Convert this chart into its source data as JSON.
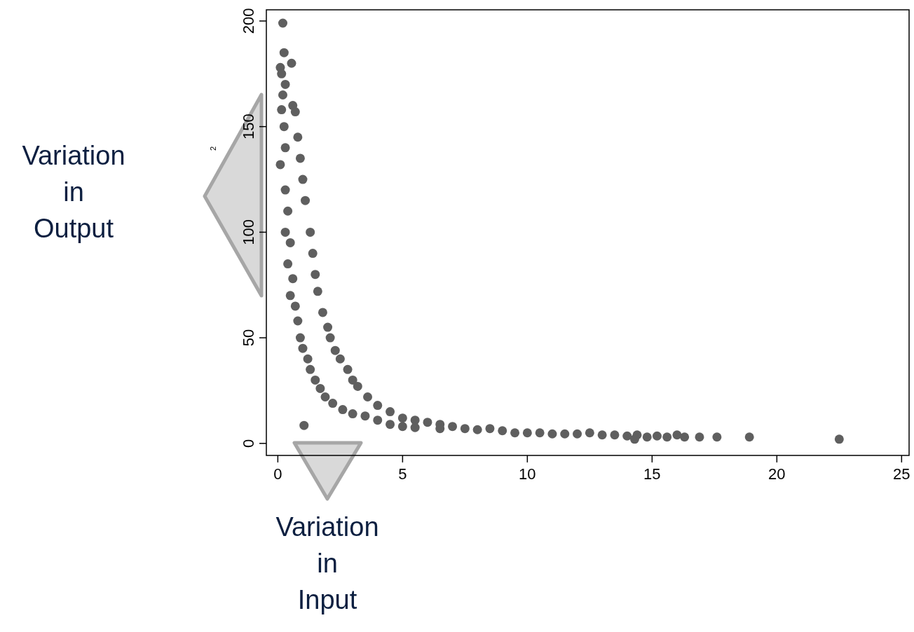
{
  "chart_data": {
    "type": "scatter",
    "ylabel": "2",
    "xlim": [
      -0.46,
      25.3
    ],
    "ylim": [
      -5.7,
      205.3
    ],
    "xticks": [
      0,
      5,
      10,
      15,
      20,
      25
    ],
    "yticks": [
      0,
      50,
      100,
      150,
      200
    ],
    "marker": "circle",
    "color": "#5f5f5f",
    "x": [
      0.2,
      0.25,
      0.55,
      0.1,
      0.15,
      0.3,
      0.2,
      0.6,
      0.7,
      0.15,
      0.25,
      0.8,
      0.1,
      0.9,
      0.3,
      1.0,
      0.3,
      1.1,
      0.4,
      1.3,
      0.3,
      0.5,
      1.4,
      0.4,
      1.5,
      0.6,
      1.6,
      0.5,
      0.7,
      1.8,
      0.8,
      2.0,
      0.9,
      2.1,
      1.0,
      2.3,
      1.2,
      2.5,
      1.3,
      2.8,
      1.5,
      3.0,
      1.7,
      3.2,
      1.9,
      3.6,
      2.2,
      4.0,
      2.6,
      3.0,
      4.5,
      3.5,
      5.0,
      4.0,
      5.5,
      4.5,
      6.0,
      5.0,
      6.5,
      5.5,
      7.0,
      6.5,
      7.5,
      8.0,
      8.5,
      9.0,
      9.5,
      10.0,
      10.5,
      11.0,
      11.5,
      12.0,
      12.5,
      13.0,
      13.5,
      14.0,
      14.3,
      14.4,
      14.8,
      15.2,
      15.6,
      16.0,
      16.3,
      16.9,
      17.6,
      18.9,
      22.5,
      1.05
    ],
    "values": [
      199,
      185,
      180,
      178,
      175,
      170,
      165,
      160,
      157,
      158,
      150,
      145,
      132,
      135,
      140,
      125,
      120,
      115,
      110,
      100,
      100,
      95,
      90,
      85,
      80,
      78,
      72,
      70,
      65,
      62,
      58,
      55,
      50,
      50,
      45,
      44,
      40,
      40,
      35,
      35,
      30,
      30,
      26,
      27,
      22,
      22,
      19,
      18,
      16,
      14,
      15,
      13,
      12,
      11,
      11,
      9,
      10,
      8,
      9,
      7.5,
      8,
      7,
      7,
      6.5,
      7,
      6,
      5,
      5,
      5,
      4.5,
      4.5,
      4.5,
      5,
      4,
      4,
      3.5,
      2,
      4,
      3,
      3.5,
      3,
      4,
      3,
      3,
      3,
      3,
      2,
      8.5
    ],
    "annotations": [
      "Variation in Output",
      "Variation in Input"
    ]
  }
}
